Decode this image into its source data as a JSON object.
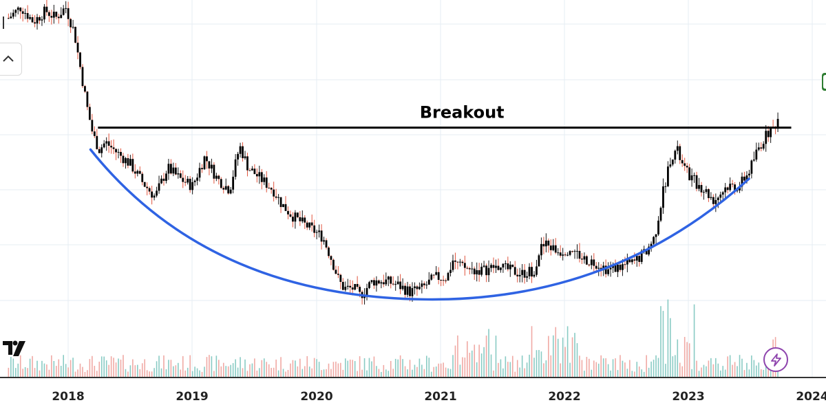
{
  "chart_data": {
    "type": "candlestick",
    "title": "",
    "xlabel": "",
    "ylabel": "",
    "x_ticks": [
      "2018",
      "2019",
      "2020",
      "2021",
      "2022",
      "2023",
      "2024"
    ],
    "grid": true,
    "annotations": [
      {
        "text": "Breakout",
        "kind": "horizontal-resistance-line"
      },
      {
        "text": "",
        "kind": "cup-curve"
      }
    ],
    "price_path": [
      [
        2017.52,
        96
      ],
      [
        2017.62,
        99
      ],
      [
        2017.72,
        95
      ],
      [
        2017.82,
        98
      ],
      [
        2017.9,
        96
      ],
      [
        2017.98,
        99
      ],
      [
        2018.05,
        92
      ],
      [
        2018.1,
        82
      ],
      [
        2018.15,
        72
      ],
      [
        2018.2,
        64
      ],
      [
        2018.25,
        60
      ],
      [
        2018.3,
        62
      ],
      [
        2018.4,
        59
      ],
      [
        2018.5,
        56
      ],
      [
        2018.6,
        51
      ],
      [
        2018.7,
        47
      ],
      [
        2018.8,
        55
      ],
      [
        2018.9,
        52
      ],
      [
        2019.0,
        50
      ],
      [
        2019.1,
        58
      ],
      [
        2019.2,
        52
      ],
      [
        2019.3,
        49
      ],
      [
        2019.38,
        61
      ],
      [
        2019.45,
        55
      ],
      [
        2019.55,
        52
      ],
      [
        2019.65,
        49
      ],
      [
        2019.72,
        45
      ],
      [
        2019.8,
        42
      ],
      [
        2019.88,
        40
      ],
      [
        2019.97,
        38
      ],
      [
        2020.05,
        36
      ],
      [
        2020.12,
        30
      ],
      [
        2020.18,
        24
      ],
      [
        2020.22,
        22
      ],
      [
        2020.3,
        22
      ],
      [
        2020.35,
        20
      ],
      [
        2020.45,
        24
      ],
      [
        2020.55,
        24
      ],
      [
        2020.65,
        23
      ],
      [
        2020.75,
        21
      ],
      [
        2020.85,
        22
      ],
      [
        2020.95,
        25
      ],
      [
        2021.05,
        25
      ],
      [
        2021.1,
        30
      ],
      [
        2021.15,
        28
      ],
      [
        2021.25,
        27
      ],
      [
        2021.35,
        27
      ],
      [
        2021.45,
        28
      ],
      [
        2021.55,
        27
      ],
      [
        2021.65,
        26
      ],
      [
        2021.75,
        27
      ],
      [
        2021.8,
        33
      ],
      [
        2021.85,
        34
      ],
      [
        2021.95,
        32
      ],
      [
        2022.05,
        33
      ],
      [
        2022.15,
        30
      ],
      [
        2022.25,
        29
      ],
      [
        2022.35,
        27
      ],
      [
        2022.45,
        28
      ],
      [
        2022.55,
        29
      ],
      [
        2022.65,
        32
      ],
      [
        2022.72,
        36
      ],
      [
        2022.78,
        47
      ],
      [
        2022.85,
        58
      ],
      [
        2022.9,
        60
      ],
      [
        2022.95,
        55
      ],
      [
        2023.02,
        52
      ],
      [
        2023.12,
        49
      ],
      [
        2023.2,
        46
      ],
      [
        2023.3,
        50
      ],
      [
        2023.4,
        50
      ],
      [
        2023.48,
        54
      ],
      [
        2023.55,
        60
      ],
      [
        2023.62,
        64
      ],
      [
        2023.68,
        66
      ],
      [
        2023.72,
        69
      ]
    ],
    "resistance_level": 66,
    "cup": {
      "start": [
        2018.18,
        60
      ],
      "bottom": [
        2020.85,
        19
      ],
      "end": [
        2023.48,
        52
      ]
    },
    "colors": {
      "candle_body": "#000000",
      "candle_down_wick": "#e0533c",
      "resistance_line": "#000000",
      "cup_curve": "#2f63e3",
      "volume_up": "#89cbc4",
      "volume_down": "#f0a9a4",
      "grid": "#e6ecf3",
      "lightning_button": "#8e44ad",
      "price_tag": "#2e7d32"
    }
  },
  "annotation": {
    "breakout_label": "Breakout"
  },
  "icons": {
    "chevron": "chevron-up-icon",
    "logo": "tradingview-logo-icon",
    "lightning": "lightning-icon"
  }
}
